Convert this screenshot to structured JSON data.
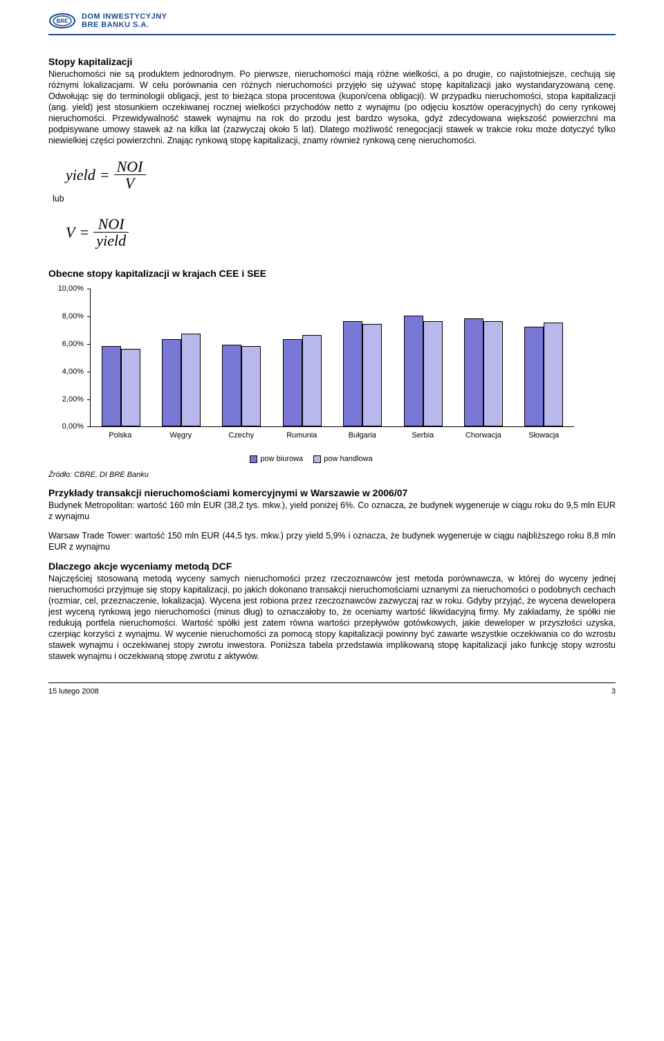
{
  "header": {
    "logo_line1": "DOM INWESTYCYJNY",
    "logo_line2": "BRE BANKU S.A."
  },
  "section1": {
    "title": "Stopy kapitalizacji",
    "text": "Nieruchomości nie są produktem jednorodnym. Po pierwsze, nieruchomości mają różne wielkości, a po drugie, co najistotniejsze, cechują się różnymi lokalizacjami. W celu porównania cen różnych nieruchomości przyjęło się używać stopę kapitalizacji jako wystandaryzowaną cenę. Odwołując się do terminologii obligacji, jest to bieżąca stopa procentowa (kupon/cena obligacji). W przypadku nieruchomości, stopa kapitalizacji (ang. yield) jest stosunkiem oczekiwanej rocznej wielkości przychodów netto z wynajmu (po odjęciu kosztów operacyjnych) do ceny rynkowej nieruchomości. Przewidywalność stawek wynajmu na rok do przodu jest bardzo wysoka, gdyż zdecydowana większość powierzchni ma podpisywane umowy stawek aż na kilka lat (zazwyczaj około 5 lat). Dlatego możliwość renegocjacji stawek w trakcie roku może dotyczyć tylko niewielkiej części powierzchni. Znając rynkową stopę kapitalizacji, znamy również rynkową cenę nieruchomości."
  },
  "formulas": {
    "f1_lhs": "yield",
    "f1_num": "NOI",
    "f1_den": "V",
    "lub": "lub",
    "f2_lhs": "V",
    "f2_num": "NOI",
    "f2_den": "yield"
  },
  "chart": {
    "title": "Obecne stopy kapitalizacji w krajach CEE i SEE",
    "ymax": 10,
    "ytick_step": 2,
    "ylabels": [
      "10,00%",
      "8,00%",
      "6,00%",
      "4,00%",
      "2,00%",
      "0,00%"
    ],
    "series_colors": {
      "office": "#7a78d6",
      "retail": "#b9b8ed"
    },
    "legend_labels": {
      "office": "pow biurowa",
      "retail": "pow handlowa"
    },
    "categories": [
      "Polska",
      "Węgry",
      "Czechy",
      "Rumunia",
      "Bułgaria",
      "Serbia",
      "Chorwacja",
      "Słowacja"
    ],
    "data": {
      "office": [
        5.8,
        6.3,
        5.9,
        6.3,
        7.6,
        8.0,
        7.8,
        7.2
      ],
      "retail": [
        5.6,
        6.7,
        5.8,
        6.6,
        7.4,
        7.6,
        7.6,
        7.5
      ]
    }
  },
  "source": "Źródło: CBRE, DI BRE Banku",
  "section2": {
    "title": "Przykłady transakcji nieruchomościami komercyjnymi w Warszawie w 2006/07",
    "p1": "Budynek Metropolitan: wartość 160 mln EUR (38,2 tys. mkw.), yield poniżej 6%. Co oznacza, że budynek wygeneruje w ciągu roku do 9,5 mln EUR z wynajmu",
    "p2": "Warsaw Trade Tower: wartość 150 mln EUR (44,5 tys. mkw.) przy yield 5,9% i oznacza, że budynek wygeneruje w ciągu najbliższego roku 8,8 mln EUR z wynajmu"
  },
  "section3": {
    "title": "Dlaczego akcje wyceniamy metodą DCF",
    "text": "Najczęściej stosowaną metodą wyceny samych nieruchomości przez rzeczoznawców jest metoda porównawcza, w której do wyceny jednej nieruchomości przyjmuje się stopy kapitalizacji, po jakich dokonano transakcji nieruchomościami uznanymi za nieruchomości o podobnych cechach (rozmiar, cel, przeznaczenie, lokalizacja). Wycena jest robiona przez rzeczoznawców zazwyczaj raz w roku. Gdyby przyjąć, że wycena dewelopera jest wyceną rynkową jego nieruchomości (minus dług) to oznaczałoby to, że oceniamy wartość likwidacyjną firmy. My zakładamy, że spółki nie redukują portfela nieruchomości. Wartość spółki jest zatem równa wartości przepływów gotówkowych, jakie deweloper w przyszłości uzyska, czerpiąc korzyści z wynajmu. W wycenie nieruchomości za pomocą stopy kapitalizacji powinny być zawarte wszystkie oczekiwania co do wzrostu stawek wynajmu i oczekiwanej stopy zwrotu inwestora. Poniższa tabela przedstawia implikowaną stopę kapitalizacji jako funkcję stopy wzrostu stawek wynajmu i oczekiwaną stopę zwrotu z aktywów."
  },
  "footer": {
    "date": "15 lutego 2008",
    "page": "3"
  }
}
